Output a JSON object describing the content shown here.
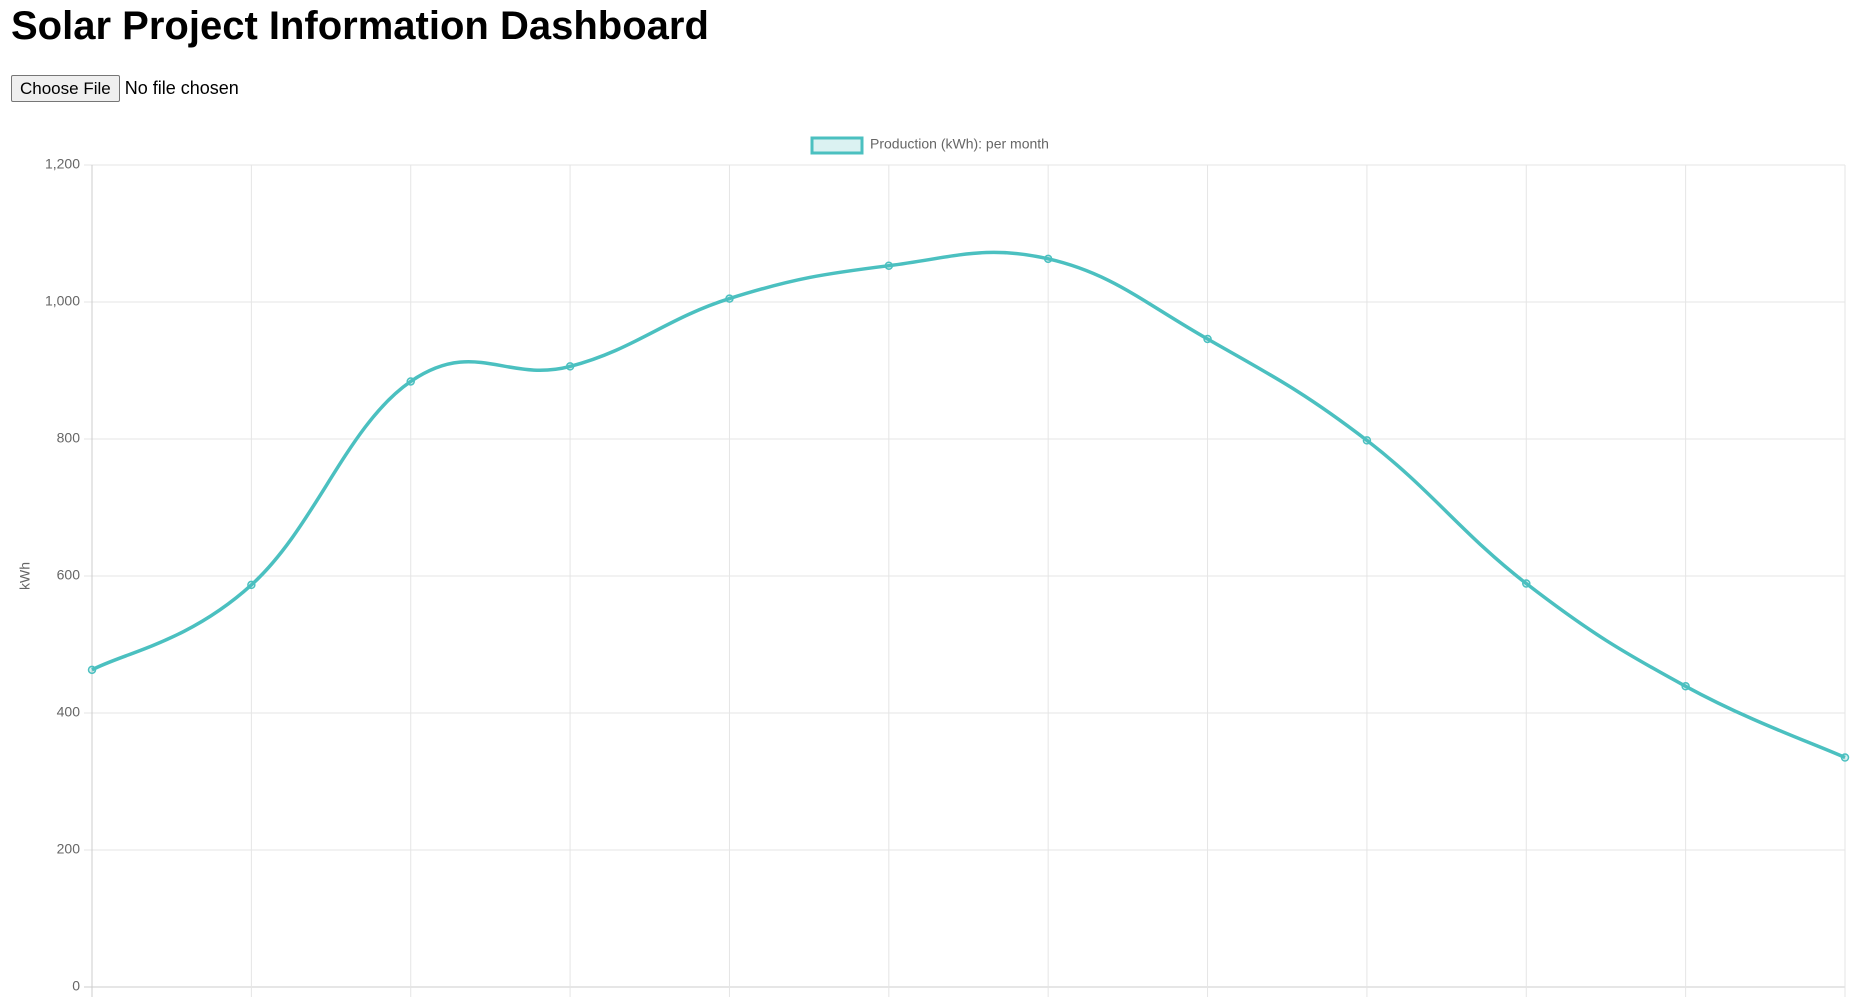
{
  "title": "Solar Project Information Dashboard",
  "file_input": {
    "button": "Choose File",
    "status": "No file chosen"
  },
  "chart_data": {
    "type": "line",
    "categories": [
      null,
      null,
      null,
      null,
      null,
      null,
      null,
      null,
      null,
      null,
      null,
      null
    ],
    "series": [
      {
        "name": "Production (kWh): per month",
        "color": "#4bc0c0",
        "values": [
          463,
          587,
          884,
          906,
          1005,
          1053,
          1063,
          946,
          798,
          589,
          439,
          335
        ]
      }
    ],
    "y_label": "kWh",
    "ylim": [
      0,
      1200
    ],
    "yticks": [
      0,
      200,
      400,
      600,
      800,
      {
        "value": 1000,
        "label": "1,000"
      },
      {
        "value": 1200,
        "label": "1,200"
      }
    ],
    "grid": true,
    "legend": "top"
  }
}
